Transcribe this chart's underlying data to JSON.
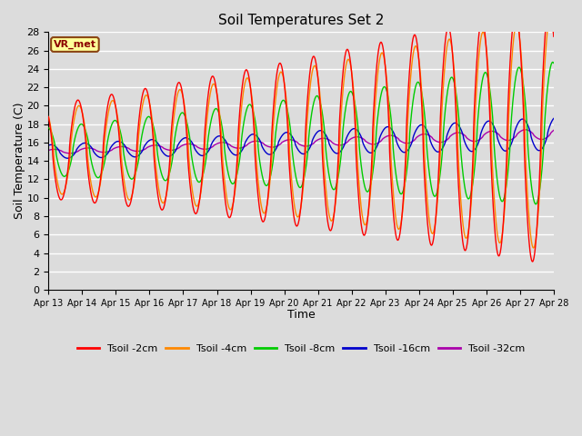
{
  "title": "Soil Temperatures Set 2",
  "xlabel": "Time",
  "ylabel": "Soil Temperature (C)",
  "ylim": [
    0,
    28
  ],
  "yticks": [
    0,
    2,
    4,
    6,
    8,
    10,
    12,
    14,
    16,
    18,
    20,
    22,
    24,
    26,
    28
  ],
  "background_color": "#dcdcdc",
  "plot_bg_color": "#dcdcdc",
  "grid_color": "white",
  "series_colors": {
    "Tsoil -2cm": "#ff0000",
    "Tsoil -4cm": "#ff8800",
    "Tsoil -8cm": "#00cc00",
    "Tsoil -16cm": "#0000cc",
    "Tsoil -32cm": "#aa00aa"
  },
  "annotation_text": "VR_met",
  "annotation_color": "#8b0000",
  "annotation_bg": "#ffff99",
  "annotation_border": "#8b4513",
  "x_labels": [
    "Apr 13",
    "Apr 14",
    "Apr 15",
    "Apr 16",
    "Apr 17",
    "Apr 18",
    "Apr 19",
    "Apr 20",
    "Apr 21",
    "Apr 22",
    "Apr 23",
    "Apr 24",
    "Apr 25",
    "Apr 26",
    "Apr 27",
    "Apr 28"
  ],
  "n_days": 15,
  "pts_per_day": 144,
  "figsize": [
    6.4,
    4.8
  ],
  "dpi": 100
}
